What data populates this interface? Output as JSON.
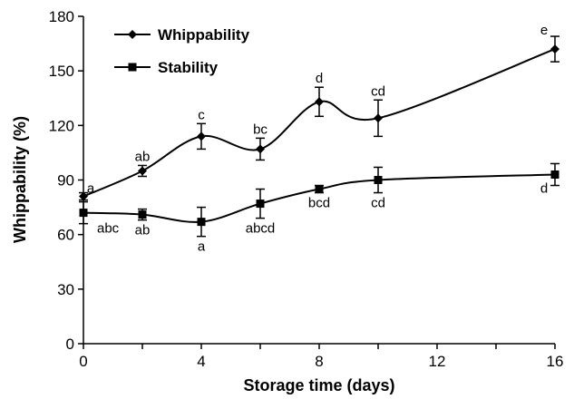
{
  "chart_data": {
    "type": "line",
    "xlabel": "Storage time (days)",
    "ylabel": "Whippability (%)",
    "xlim": [
      0,
      16
    ],
    "ylim": [
      0,
      180
    ],
    "xticks": [
      0,
      4,
      8,
      12,
      16
    ],
    "yticks": [
      0,
      30,
      60,
      90,
      120,
      150,
      180
    ],
    "grid": false,
    "legend": "top-left",
    "series": [
      {
        "name": "Whippability",
        "marker": "diamond",
        "color": "#000000",
        "x": [
          0,
          2,
          4,
          6,
          8,
          10,
          16
        ],
        "y": [
          81,
          95,
          114,
          107,
          133,
          124,
          162
        ],
        "error": [
          2,
          3,
          7,
          6,
          8,
          10,
          7
        ],
        "labels": [
          "a",
          "ab",
          "c",
          "bc",
          "d",
          "cd",
          "e"
        ]
      },
      {
        "name": "Stability",
        "marker": "square",
        "color": "#000000",
        "x": [
          0,
          2,
          4,
          6,
          8,
          10,
          16
        ],
        "y": [
          72,
          71,
          67,
          77,
          85,
          90,
          93
        ],
        "error": [
          6,
          3,
          8,
          8,
          2,
          7,
          6
        ],
        "labels": [
          "abc",
          "ab",
          "a",
          "abcd",
          "bcd",
          "cd",
          "d"
        ]
      }
    ]
  }
}
